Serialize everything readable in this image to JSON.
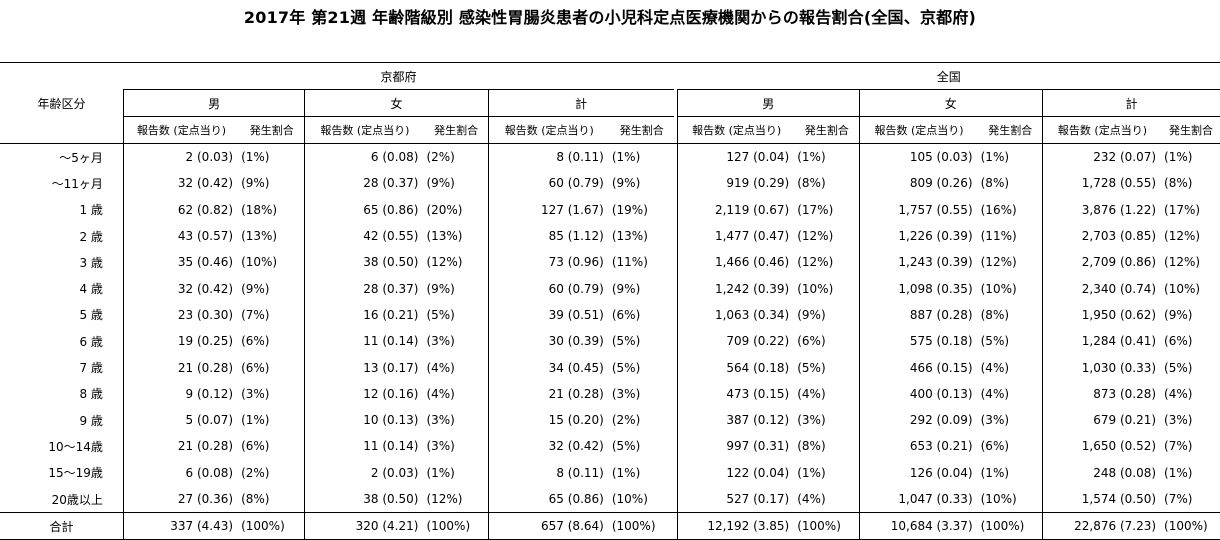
{
  "title": "2017年 第21週 年齢階級別 感染性胃腸炎患者の小児科定点医療機関からの報告割合(全国、京都府)",
  "header": {
    "age_label": "年齢区分",
    "regions": [
      "京都府",
      "全国"
    ],
    "sexes": [
      "男",
      "女",
      "計"
    ],
    "count_label": "報告数 (定点当り)",
    "rate_label": "発生割合"
  },
  "rows": [
    {
      "age": "～5ヶ月",
      "kyoto": [
        [
          "2 (0.03)",
          "(1%)"
        ],
        [
          "6 (0.08)",
          "(2%)"
        ],
        [
          "8 (0.11)",
          "(1%)"
        ]
      ],
      "national": [
        [
          "127 (0.04)",
          "(1%)"
        ],
        [
          "105 (0.03)",
          "(1%)"
        ],
        [
          "232 (0.07)",
          "(1%)"
        ]
      ]
    },
    {
      "age": "～11ヶ月",
      "kyoto": [
        [
          "32 (0.42)",
          "(9%)"
        ],
        [
          "28 (0.37)",
          "(9%)"
        ],
        [
          "60 (0.79)",
          "(9%)"
        ]
      ],
      "national": [
        [
          "919 (0.29)",
          "(8%)"
        ],
        [
          "809 (0.26)",
          "(8%)"
        ],
        [
          "1,728 (0.55)",
          "(8%)"
        ]
      ]
    },
    {
      "age": "1 歳",
      "kyoto": [
        [
          "62 (0.82)",
          "(18%)"
        ],
        [
          "65 (0.86)",
          "(20%)"
        ],
        [
          "127 (1.67)",
          "(19%)"
        ]
      ],
      "national": [
        [
          "2,119 (0.67)",
          "(17%)"
        ],
        [
          "1,757 (0.55)",
          "(16%)"
        ],
        [
          "3,876 (1.22)",
          "(17%)"
        ]
      ]
    },
    {
      "age": "2 歳",
      "kyoto": [
        [
          "43 (0.57)",
          "(13%)"
        ],
        [
          "42 (0.55)",
          "(13%)"
        ],
        [
          "85 (1.12)",
          "(13%)"
        ]
      ],
      "national": [
        [
          "1,477 (0.47)",
          "(12%)"
        ],
        [
          "1,226 (0.39)",
          "(11%)"
        ],
        [
          "2,703 (0.85)",
          "(12%)"
        ]
      ]
    },
    {
      "age": "3 歳",
      "kyoto": [
        [
          "35 (0.46)",
          "(10%)"
        ],
        [
          "38 (0.50)",
          "(12%)"
        ],
        [
          "73 (0.96)",
          "(11%)"
        ]
      ],
      "national": [
        [
          "1,466 (0.46)",
          "(12%)"
        ],
        [
          "1,243 (0.39)",
          "(12%)"
        ],
        [
          "2,709 (0.86)",
          "(12%)"
        ]
      ]
    },
    {
      "age": "4 歳",
      "kyoto": [
        [
          "32 (0.42)",
          "(9%)"
        ],
        [
          "28 (0.37)",
          "(9%)"
        ],
        [
          "60 (0.79)",
          "(9%)"
        ]
      ],
      "national": [
        [
          "1,242 (0.39)",
          "(10%)"
        ],
        [
          "1,098 (0.35)",
          "(10%)"
        ],
        [
          "2,340 (0.74)",
          "(10%)"
        ]
      ]
    },
    {
      "age": "5 歳",
      "kyoto": [
        [
          "23 (0.30)",
          "(7%)"
        ],
        [
          "16 (0.21)",
          "(5%)"
        ],
        [
          "39 (0.51)",
          "(6%)"
        ]
      ],
      "national": [
        [
          "1,063 (0.34)",
          "(9%)"
        ],
        [
          "887 (0.28)",
          "(8%)"
        ],
        [
          "1,950 (0.62)",
          "(9%)"
        ]
      ]
    },
    {
      "age": "6 歳",
      "kyoto": [
        [
          "19 (0.25)",
          "(6%)"
        ],
        [
          "11 (0.14)",
          "(3%)"
        ],
        [
          "30 (0.39)",
          "(5%)"
        ]
      ],
      "national": [
        [
          "709 (0.22)",
          "(6%)"
        ],
        [
          "575 (0.18)",
          "(5%)"
        ],
        [
          "1,284 (0.41)",
          "(6%)"
        ]
      ]
    },
    {
      "age": "7 歳",
      "kyoto": [
        [
          "21 (0.28)",
          "(6%)"
        ],
        [
          "13 (0.17)",
          "(4%)"
        ],
        [
          "34 (0.45)",
          "(5%)"
        ]
      ],
      "national": [
        [
          "564 (0.18)",
          "(5%)"
        ],
        [
          "466 (0.15)",
          "(4%)"
        ],
        [
          "1,030 (0.33)",
          "(5%)"
        ]
      ]
    },
    {
      "age": "8 歳",
      "kyoto": [
        [
          "9 (0.12)",
          "(3%)"
        ],
        [
          "12 (0.16)",
          "(4%)"
        ],
        [
          "21 (0.28)",
          "(3%)"
        ]
      ],
      "national": [
        [
          "473 (0.15)",
          "(4%)"
        ],
        [
          "400 (0.13)",
          "(4%)"
        ],
        [
          "873 (0.28)",
          "(4%)"
        ]
      ]
    },
    {
      "age": "9 歳",
      "kyoto": [
        [
          "5 (0.07)",
          "(1%)"
        ],
        [
          "10 (0.13)",
          "(3%)"
        ],
        [
          "15 (0.20)",
          "(2%)"
        ]
      ],
      "national": [
        [
          "387 (0.12)",
          "(3%)"
        ],
        [
          "292 (0.09)",
          "(3%)"
        ],
        [
          "679 (0.21)",
          "(3%)"
        ]
      ]
    },
    {
      "age": "10～14歳",
      "kyoto": [
        [
          "21 (0.28)",
          "(6%)"
        ],
        [
          "11 (0.14)",
          "(3%)"
        ],
        [
          "32 (0.42)",
          "(5%)"
        ]
      ],
      "national": [
        [
          "997 (0.31)",
          "(8%)"
        ],
        [
          "653 (0.21)",
          "(6%)"
        ],
        [
          "1,650 (0.52)",
          "(7%)"
        ]
      ]
    },
    {
      "age": "15～19歳",
      "kyoto": [
        [
          "6 (0.08)",
          "(2%)"
        ],
        [
          "2 (0.03)",
          "(1%)"
        ],
        [
          "8 (0.11)",
          "(1%)"
        ]
      ],
      "national": [
        [
          "122 (0.04)",
          "(1%)"
        ],
        [
          "126 (0.04)",
          "(1%)"
        ],
        [
          "248 (0.08)",
          "(1%)"
        ]
      ]
    },
    {
      "age": "20歳以上",
      "kyoto": [
        [
          "27 (0.36)",
          "(8%)"
        ],
        [
          "38 (0.50)",
          "(12%)"
        ],
        [
          "65 (0.86)",
          "(10%)"
        ]
      ],
      "national": [
        [
          "527 (0.17)",
          "(4%)"
        ],
        [
          "1,047 (0.33)",
          "(10%)"
        ],
        [
          "1,574 (0.50)",
          "(7%)"
        ]
      ]
    }
  ],
  "total": {
    "age": "合計",
    "kyoto": [
      [
        "337 (4.43)",
        "(100%)"
      ],
      [
        "320 (4.21)",
        "(100%)"
      ],
      [
        "657 (8.64)",
        "(100%)"
      ]
    ],
    "national": [
      [
        "12,192 (3.85)",
        "(100%)"
      ],
      [
        "10,684 (3.37)",
        "(100%)"
      ],
      [
        "22,876 (7.23)",
        "(100%)"
      ]
    ]
  }
}
